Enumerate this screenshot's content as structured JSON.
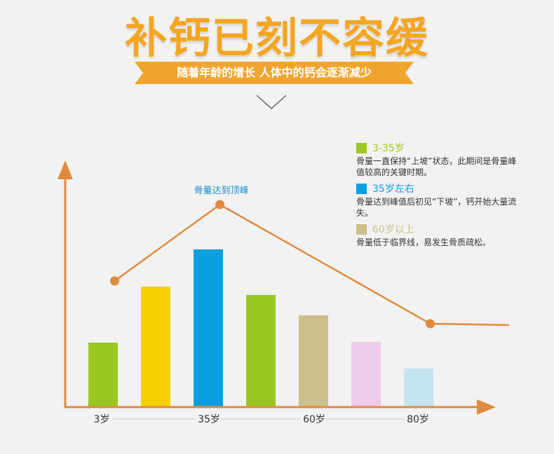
{
  "header": {
    "title": "补钙已刻不容缓",
    "subtitle": "随着年龄的增长 人体中的钙会逐渐减少"
  },
  "colors": {
    "title": "#f5a623",
    "banner": "#f0a52f",
    "axis": "#e08a3e",
    "line": "#e08a3e"
  },
  "legend": [
    {
      "label": "3-35岁",
      "desc": "骨量一直保持“上坡”状态，此期间是骨量峰值较高的关键时期。",
      "color": "#9bc820"
    },
    {
      "label": "35岁左右",
      "desc": "骨量达到峰值后初见“下坡”，钙开始大量流失。",
      "color": "#0aa0e0"
    },
    {
      "label": "60岁以上",
      "desc": "骨量低于临界线，易发生骨质疏松。",
      "color": "#cbbf8a"
    }
  ],
  "chart_data": {
    "type": "bar",
    "x_ticks": [
      "3岁",
      "35岁",
      "60岁",
      "80岁"
    ],
    "bars": [
      {
        "value": 92,
        "color": "#9bc820"
      },
      {
        "value": 172,
        "color": "#f5d000"
      },
      {
        "value": 225,
        "color": "#0aa0e0"
      },
      {
        "value": 160,
        "color": "#9bc820"
      },
      {
        "value": 131,
        "color": "#cbbf8a"
      },
      {
        "value": 93,
        "color": "#eecbe8"
      },
      {
        "value": 55,
        "color": "#c3e3ee"
      }
    ],
    "trend_line": [
      {
        "x": 0.5,
        "y": 180
      },
      {
        "x": 2.5,
        "y": 289
      },
      {
        "x": 6.5,
        "y": 119
      },
      {
        "x": 8.0,
        "y": 117
      }
    ],
    "trend_markers": [
      0,
      1,
      2
    ],
    "annotation": "骨量达到顶峰",
    "annotation_point": 1,
    "ylim": [
      0,
      340
    ]
  }
}
